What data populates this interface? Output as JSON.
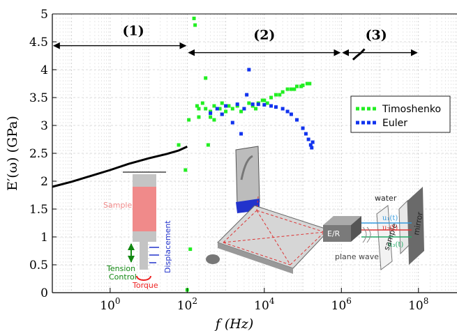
{
  "chart_data": {
    "type": "scatter",
    "xscale": "log",
    "xlim": [
      0.0316,
      1000000000
    ],
    "ylim": [
      0,
      5
    ],
    "xlabel": "f (Hz)",
    "ylabel": "E′(ω) (GPa)",
    "x_ticks": [
      {
        "value": 1,
        "base": "10",
        "exp": "0"
      },
      {
        "value": 100,
        "base": "10",
        "exp": "2"
      },
      {
        "value": 10000,
        "base": "10",
        "exp": "4"
      },
      {
        "value": 1000000,
        "base": "10",
        "exp": "6"
      },
      {
        "value": 100000000,
        "base": "10",
        "exp": "8"
      }
    ],
    "y_ticks": [
      "0",
      "0.5",
      "1",
      "1.5",
      "2",
      "2.5",
      "3",
      "3.5",
      "4",
      "4.5",
      "5"
    ],
    "grid": true,
    "legend_position": "right",
    "regions": [
      {
        "label": "(1)",
        "from": 0.0316,
        "to": 100,
        "label_x": 4
      },
      {
        "label": "(2)",
        "from": 100,
        "to": 1000000,
        "label_x": 10000
      },
      {
        "label": "(3)",
        "from": 1000000,
        "to": 100000000,
        "label_x": 8000000
      }
    ],
    "region_arrow_y": 4.43,
    "series": [
      {
        "name": "",
        "kind": "line",
        "color": "#000000",
        "x": [
          0.0316,
          0.1,
          0.3,
          1,
          3,
          10,
          30,
          60,
          100
        ],
        "y": [
          1.9,
          1.99,
          2.09,
          2.2,
          2.31,
          2.41,
          2.49,
          2.55,
          2.62
        ]
      },
      {
        "name": "Timoshenko",
        "kind": "markers",
        "color": "#22ee22",
        "x": [
          60,
          100,
          150,
          200,
          300,
          400,
          500,
          700,
          1000,
          1500,
          2000,
          3000,
          4000,
          5000,
          7000,
          10000,
          15000,
          20000,
          30000,
          40000,
          50000,
          70000,
          100000,
          150000,
          200,
          250,
          400,
          600,
          800,
          1200,
          2500,
          6000,
          9000,
          12000,
          25000,
          60000,
          90000,
          130000,
          300,
          180,
          160,
          120,
          90,
          110,
          350,
          500,
          800
        ],
        "y": [
          2.65,
          0.05,
          4.92,
          3.3,
          3.3,
          3.15,
          3.35,
          3.3,
          3.25,
          3.3,
          3.35,
          3.3,
          3.4,
          3.35,
          3.4,
          3.45,
          3.5,
          3.55,
          3.6,
          3.65,
          3.65,
          3.7,
          3.72,
          3.75,
          3.15,
          3.4,
          3.25,
          3.3,
          3.2,
          3.35,
          3.25,
          3.3,
          3.45,
          3.4,
          3.55,
          3.65,
          3.7,
          3.75,
          3.85,
          3.35,
          4.8,
          0.78,
          2.2,
          3.1,
          2.65,
          3.1,
          3.4
        ]
      },
      {
        "name": "Euler",
        "kind": "markers",
        "color": "#1133ee",
        "x": [
          400,
          600,
          1000,
          2000,
          3000,
          4000,
          5000,
          7000,
          10000,
          15000,
          20000,
          30000,
          40000,
          50000,
          70000,
          100000,
          120000,
          140000,
          160000,
          170000,
          180000,
          3500,
          1500,
          2500,
          800
        ],
        "y": [
          3.22,
          3.3,
          3.35,
          3.38,
          3.3,
          4.0,
          3.38,
          3.38,
          3.37,
          3.35,
          3.33,
          3.3,
          3.25,
          3.2,
          3.1,
          2.95,
          2.85,
          2.75,
          2.65,
          2.6,
          2.7,
          3.55,
          3.05,
          2.85,
          3.2
        ]
      },
      {
        "name": "",
        "kind": "line",
        "color": "#000000",
        "x": [
          2000000,
          2500000,
          3200000,
          4000000
        ],
        "y": [
          4.18,
          4.24,
          4.3,
          4.37
        ]
      }
    ]
  },
  "insets": {
    "sample_label": "Sample",
    "displacement_label": "Displacement",
    "tension_label": "Tension",
    "control_label": "Control",
    "torque_label": "Torque",
    "water_label": "water",
    "er_label": "E/R",
    "sample_box_label": "sample",
    "mirror_label": "mirror",
    "plane_wave_label": "plane wave",
    "u1_label": "u₁(t)",
    "u2_label": "u₂(t)",
    "u3_label": "u₃(t)"
  }
}
